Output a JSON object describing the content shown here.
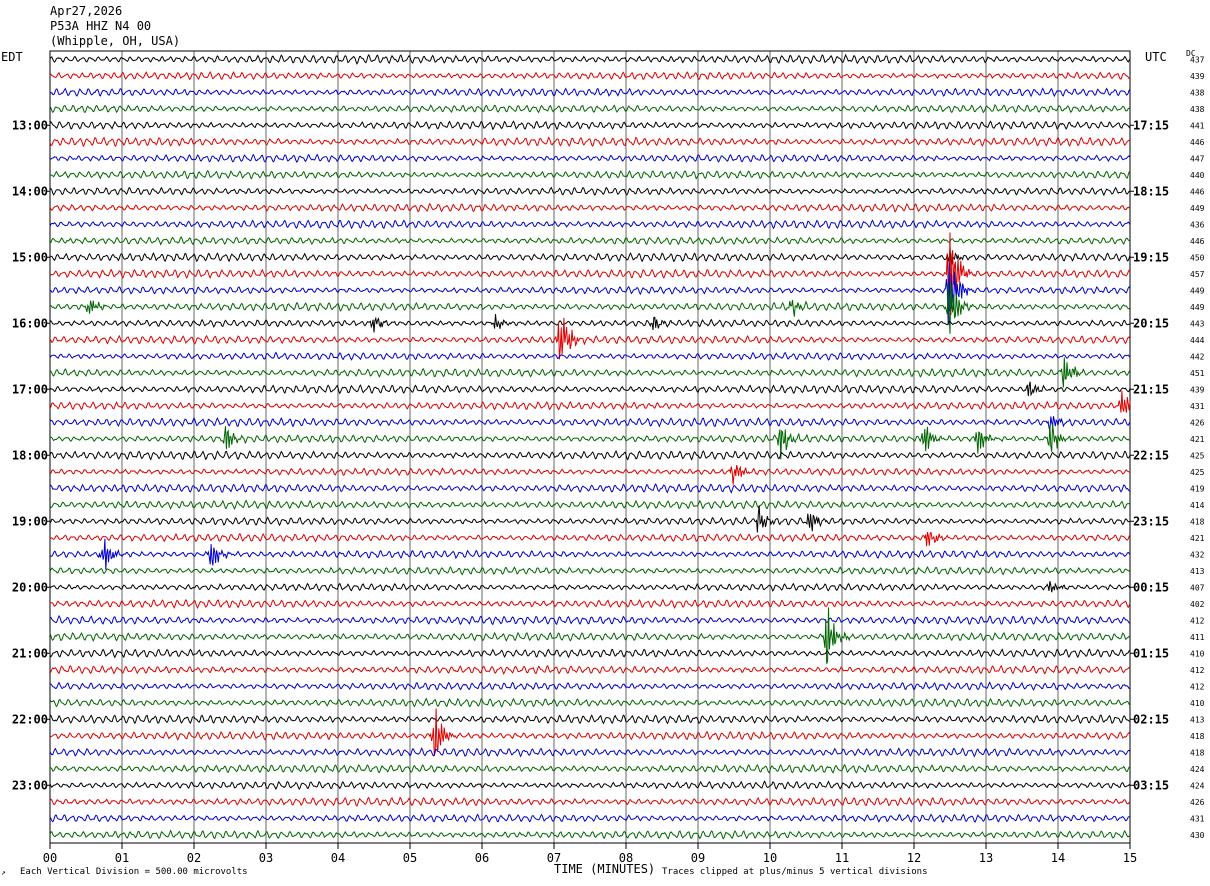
{
  "header": {
    "date": "Apr27,2026",
    "station": "P53A HHZ N4 00",
    "location": "(Whipple, OH, USA)"
  },
  "left_timezone": "EDT",
  "right_timezone": "UTC",
  "dc_header": "DC",
  "footer": {
    "scale_note": "Each Vertical Division =  500.00 microvolts",
    "xlabel": "TIME (MINUTES)",
    "clip_note": "Traces clipped at plus/minus 5 vertical divisions",
    "corner_mark": "↗"
  },
  "colors": {
    "trace_cycle": [
      "#000000",
      "#dd0000",
      "#0000cc",
      "#006600"
    ],
    "grid": "#000000"
  },
  "chart_data": {
    "type": "line",
    "plot_kind": "helicorder",
    "xlabel": "TIME (MINUTES)",
    "xlim": [
      0,
      15
    ],
    "x_ticks": [
      "00",
      "01",
      "02",
      "03",
      "04",
      "05",
      "06",
      "07",
      "08",
      "09",
      "10",
      "11",
      "12",
      "13",
      "14",
      "15"
    ],
    "trace_count": 48,
    "trace_minutes": 15,
    "left_hour_labels": [
      {
        "row": 4,
        "label": "13:00"
      },
      {
        "row": 8,
        "label": "14:00"
      },
      {
        "row": 12,
        "label": "15:00"
      },
      {
        "row": 16,
        "label": "16:00"
      },
      {
        "row": 20,
        "label": "17:00"
      },
      {
        "row": 24,
        "label": "18:00"
      },
      {
        "row": 28,
        "label": "19:00"
      },
      {
        "row": 32,
        "label": "20:00"
      },
      {
        "row": 36,
        "label": "21:00"
      },
      {
        "row": 40,
        "label": "22:00"
      },
      {
        "row": 44,
        "label": "23:00"
      }
    ],
    "right_hour_labels": [
      {
        "row": 4,
        "label": "17:15"
      },
      {
        "row": 8,
        "label": "18:15"
      },
      {
        "row": 12,
        "label": "19:15"
      },
      {
        "row": 16,
        "label": "20:15"
      },
      {
        "row": 20,
        "label": "21:15"
      },
      {
        "row": 24,
        "label": "22:15"
      },
      {
        "row": 28,
        "label": "23:15"
      },
      {
        "row": 32,
        "label": "00:15"
      },
      {
        "row": 36,
        "label": "01:15"
      },
      {
        "row": 40,
        "label": "02:15"
      },
      {
        "row": 44,
        "label": "03:15"
      }
    ],
    "dc_offsets": [
      437,
      439,
      438,
      438,
      441,
      446,
      447,
      440,
      446,
      449,
      436,
      446,
      450,
      457,
      449,
      449,
      443,
      444,
      442,
      451,
      439,
      431,
      426,
      421,
      425,
      425,
      419,
      414,
      418,
      421,
      432,
      413,
      407,
      402,
      412,
      411,
      410,
      412,
      412,
      410,
      413,
      418,
      418,
      424,
      424,
      426,
      431,
      430
    ],
    "events": [
      {
        "row": 12,
        "minute": 12.5,
        "amp": 0.9
      },
      {
        "row": 13,
        "minute": 12.5,
        "amp": 5.0
      },
      {
        "row": 14,
        "minute": 12.5,
        "amp": 4.0
      },
      {
        "row": 15,
        "minute": 12.5,
        "amp": 3.0
      },
      {
        "row": 15,
        "minute": 0.55,
        "amp": 1.0
      },
      {
        "row": 15,
        "minute": 10.3,
        "amp": 0.8
      },
      {
        "row": 16,
        "minute": 4.5,
        "amp": 0.8
      },
      {
        "row": 16,
        "minute": 6.2,
        "amp": 0.7
      },
      {
        "row": 16,
        "minute": 8.4,
        "amp": 0.8
      },
      {
        "row": 17,
        "minute": 7.1,
        "amp": 3.0
      },
      {
        "row": 19,
        "minute": 14.1,
        "amp": 1.6
      },
      {
        "row": 20,
        "minute": 13.6,
        "amp": 0.7
      },
      {
        "row": 21,
        "minute": 14.9,
        "amp": 1.3
      },
      {
        "row": 22,
        "minute": 13.9,
        "amp": 0.9
      },
      {
        "row": 23,
        "minute": 2.45,
        "amp": 1.0
      },
      {
        "row": 23,
        "minute": 10.15,
        "amp": 1.7
      },
      {
        "row": 23,
        "minute": 12.15,
        "amp": 1.4
      },
      {
        "row": 23,
        "minute": 12.9,
        "amp": 1.3
      },
      {
        "row": 23,
        "minute": 13.9,
        "amp": 1.6
      },
      {
        "row": 25,
        "minute": 9.5,
        "amp": 1.2
      },
      {
        "row": 28,
        "minute": 9.85,
        "amp": 1.2
      },
      {
        "row": 28,
        "minute": 10.55,
        "amp": 1.1
      },
      {
        "row": 29,
        "minute": 12.2,
        "amp": 1.2
      },
      {
        "row": 30,
        "minute": 0.75,
        "amp": 1.6
      },
      {
        "row": 30,
        "minute": 2.25,
        "amp": 1.4
      },
      {
        "row": 32,
        "minute": 13.9,
        "amp": 0.8
      },
      {
        "row": 35,
        "minute": 10.8,
        "amp": 3.2
      },
      {
        "row": 41,
        "minute": 5.35,
        "amp": 2.5
      }
    ]
  }
}
